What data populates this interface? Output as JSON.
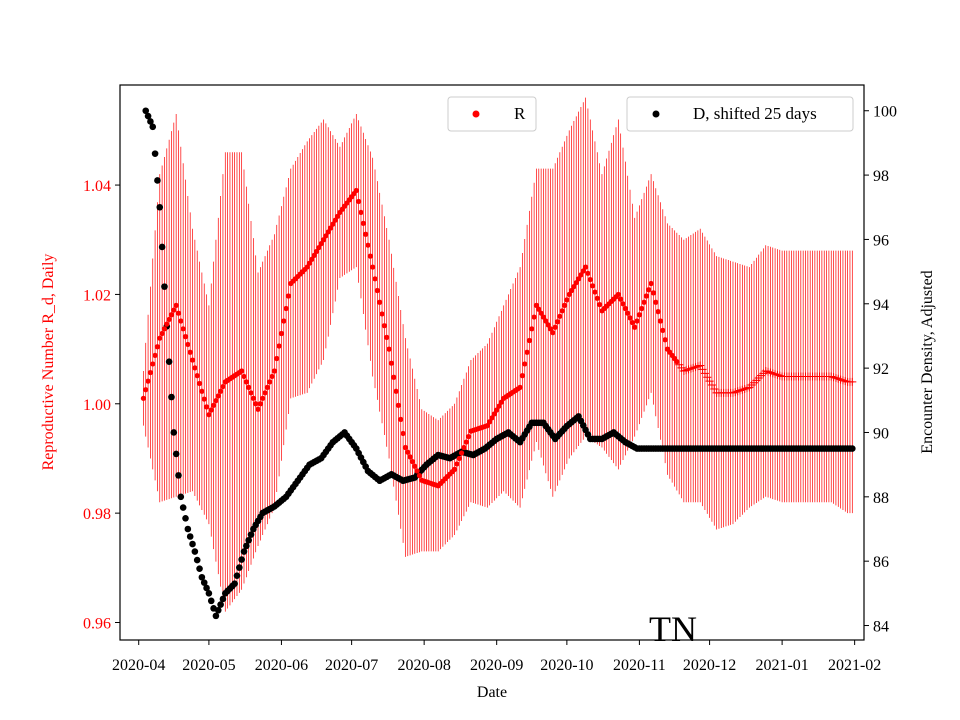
{
  "chart_data": {
    "type": "scatter",
    "xlabel": "Date",
    "ylabel_left": "Reproductive Number R_d, Daily",
    "ylabel_right": "Encounter Density, Adjusted",
    "annotation": "TN",
    "left_color": "#ff0000",
    "right_color": "#000000",
    "x_range": [
      "2020-03-24",
      "2021-02-05"
    ],
    "x_ticks": [
      "2020-04",
      "2020-05",
      "2020-06",
      "2020-07",
      "2020-08",
      "2020-09",
      "2020-10",
      "2020-11",
      "2020-12",
      "2021-01",
      "2021-02"
    ],
    "ylim_left": [
      0.9568,
      1.0583
    ],
    "ylim_right": [
      83.55,
      100.8
    ],
    "yticks_left": [
      "0.96",
      "0.98",
      "1.00",
      "1.02",
      "1.04"
    ],
    "yticks_right": [
      "84",
      "86",
      "88",
      "90",
      "92",
      "94",
      "96",
      "98",
      "100"
    ],
    "legend": [
      {
        "label": "R",
        "color": "#ff0000",
        "position": "upper-center"
      },
      {
        "label": "D, shifted 25 days",
        "color": "#000000",
        "position": "upper-right"
      }
    ],
    "series_R": {
      "name": "R",
      "start": "2020-04-03",
      "end": "2021-01-31",
      "anchor_days": [
        0,
        7,
        14,
        21,
        28,
        35,
        42,
        49,
        56,
        63,
        70,
        77,
        84,
        91,
        98,
        105,
        112,
        119,
        126,
        133,
        140,
        147,
        154,
        161,
        168,
        175,
        182,
        189,
        196,
        203,
        210,
        217,
        224,
        231,
        238,
        245,
        252,
        259,
        266,
        273,
        280,
        287,
        294,
        301
      ],
      "anchor_values": [
        1.001,
        1.012,
        1.018,
        1.008,
        0.998,
        1.004,
        1.006,
        0.999,
        1.006,
        1.022,
        1.025,
        1.03,
        1.035,
        1.039,
        1.025,
        1.01,
        0.992,
        0.986,
        0.985,
        0.988,
        0.995,
        0.996,
        1.001,
        1.003,
        1.018,
        1.013,
        1.02,
        1.025,
        1.017,
        1.02,
        1.014,
        1.022,
        1.01,
        1.006,
        1.007,
        1.002,
        1.002,
        1.003,
        1.006,
        1.005,
        1.005,
        1.005,
        1.005,
        1.004
      ],
      "error_halfwidth": [
        0.005,
        0.03,
        0.035,
        0.024,
        0.02,
        0.042,
        0.04,
        0.025,
        0.025,
        0.021,
        0.023,
        0.022,
        0.012,
        0.014,
        0.02,
        0.02,
        0.02,
        0.013,
        0.012,
        0.012,
        0.013,
        0.015,
        0.017,
        0.022,
        0.025,
        0.03,
        0.03,
        0.031,
        0.025,
        0.032,
        0.02,
        0.02,
        0.023,
        0.024,
        0.025,
        0.025,
        0.024,
        0.022,
        0.023,
        0.023,
        0.023,
        0.023,
        0.023,
        0.024
      ],
      "marker_change_date": "2020-11-18"
    },
    "series_D": {
      "name": "D, shifted 25 days",
      "start": "2020-04-04",
      "end": "2021-01-31",
      "anchor_days": [
        0,
        3,
        6,
        9,
        12,
        15,
        18,
        21,
        24,
        27,
        30,
        34,
        38,
        42,
        46,
        50,
        55,
        60,
        65,
        70,
        75,
        80,
        85,
        90,
        95,
        100,
        105,
        110,
        115,
        120,
        125,
        130,
        135,
        140,
        145,
        150,
        155,
        160,
        165,
        170,
        175,
        180,
        185,
        190,
        195,
        200,
        205,
        210,
        215,
        220,
        225,
        230,
        301
      ],
      "anchor_values": [
        100.0,
        99.5,
        97.0,
        93.3,
        90.0,
        88.0,
        87.0,
        86.3,
        85.5,
        85.0,
        84.3,
        85.0,
        85.3,
        86.3,
        87.0,
        87.5,
        87.7,
        88.0,
        88.5,
        89.0,
        89.2,
        89.7,
        90.0,
        89.5,
        88.8,
        88.5,
        88.7,
        88.5,
        88.6,
        89.0,
        89.3,
        89.2,
        89.4,
        89.3,
        89.5,
        89.8,
        90.0,
        89.7,
        90.3,
        90.3,
        89.8,
        90.2,
        90.5,
        89.8,
        89.8,
        90.0,
        89.7,
        89.5,
        89.5,
        89.5,
        89.5,
        89.5,
        89.5
      ]
    }
  }
}
